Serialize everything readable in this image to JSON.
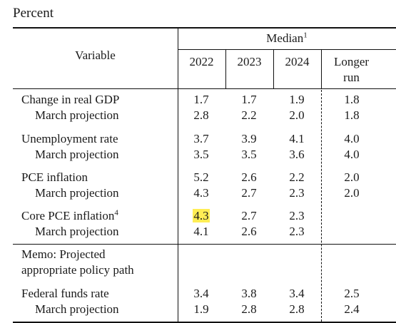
{
  "unit_label": "Percent",
  "header": {
    "variable": "Variable",
    "median": "Median",
    "median_note": "1",
    "years": [
      "2022",
      "2023",
      "2024"
    ],
    "longer_run_line1": "Longer",
    "longer_run_line2": "run"
  },
  "rows": [
    {
      "label": "Change in real GDP",
      "values": [
        "1.7",
        "1.7",
        "1.9",
        "1.8"
      ]
    },
    {
      "label": "March projection",
      "values": [
        "2.8",
        "2.2",
        "2.0",
        "1.8"
      ]
    },
    {
      "label": "Unemployment rate",
      "values": [
        "3.7",
        "3.9",
        "4.1",
        "4.0"
      ]
    },
    {
      "label": "March projection",
      "values": [
        "3.5",
        "3.5",
        "3.6",
        "4.0"
      ]
    },
    {
      "label": "PCE inflation",
      "values": [
        "5.2",
        "2.6",
        "2.2",
        "2.0"
      ]
    },
    {
      "label": "March projection",
      "values": [
        "4.3",
        "2.7",
        "2.3",
        "2.0"
      ]
    },
    {
      "label": "Core PCE inflation",
      "note": "4",
      "values": [
        "4.3",
        "2.7",
        "2.3",
        ""
      ],
      "highlighted_value": "4.3"
    },
    {
      "label": "March projection",
      "values": [
        "4.1",
        "2.6",
        "2.3",
        ""
      ]
    },
    {
      "label": "Federal funds rate",
      "values": [
        "3.4",
        "3.8",
        "3.4",
        "2.5"
      ]
    },
    {
      "label": "March projection",
      "values": [
        "1.9",
        "2.8",
        "2.8",
        "2.4"
      ]
    }
  ],
  "memo": {
    "line1": "Memo: Projected",
    "line2": "appropriate policy path"
  },
  "colors": {
    "highlight": "#ffee55",
    "rule": "#111111"
  }
}
